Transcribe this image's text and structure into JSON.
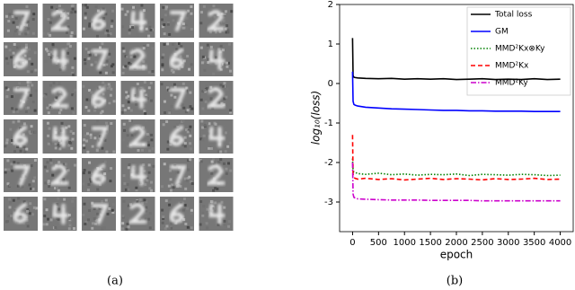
{
  "captions": {
    "a": "(a)",
    "b": "(b)"
  },
  "chart_data": {
    "type": "line",
    "xlabel": "epoch",
    "ylabel": "log₁₀(loss)",
    "x": [
      0,
      10,
      25,
      50,
      100,
      250,
      500,
      750,
      1000,
      1250,
      1500,
      1750,
      2000,
      2250,
      2500,
      2750,
      3000,
      3250,
      3500,
      3750,
      4000
    ],
    "xlim": [
      -250,
      4250
    ],
    "xticks": [
      0,
      500,
      1000,
      1500,
      2000,
      2500,
      3000,
      3500,
      4000
    ],
    "ylim": [
      -3.75,
      2
    ],
    "yticks": [
      -3,
      -2,
      -1,
      0,
      1,
      2
    ],
    "legend": "upper right",
    "series": [
      {
        "name": "Total loss",
        "color": "#000000",
        "dash": "solid",
        "values": [
          1.15,
          0.2,
          0.16,
          0.15,
          0.14,
          0.13,
          0.12,
          0.13,
          0.11,
          0.12,
          0.11,
          0.12,
          0.1,
          0.11,
          0.12,
          0.1,
          0.11,
          0.1,
          0.12,
          0.1,
          0.11
        ]
      },
      {
        "name": "GM",
        "color": "#0000ff",
        "dash": "solid",
        "values": [
          0.3,
          -0.45,
          -0.53,
          -0.55,
          -0.57,
          -0.6,
          -0.62,
          -0.64,
          -0.65,
          -0.66,
          -0.67,
          -0.68,
          -0.68,
          -0.69,
          -0.69,
          -0.7,
          -0.7,
          -0.7,
          -0.71,
          -0.71,
          -0.71
        ]
      },
      {
        "name": "MMD²Kx⊗Ky",
        "color": "#008000",
        "dash": "dotted",
        "values": [
          -1.9,
          -2.2,
          -2.24,
          -2.25,
          -2.28,
          -2.3,
          -2.27,
          -2.31,
          -2.29,
          -2.32,
          -2.3,
          -2.31,
          -2.29,
          -2.33,
          -2.3,
          -2.31,
          -2.32,
          -2.3,
          -2.31,
          -2.33,
          -2.32
        ]
      },
      {
        "name": "MMD²Kx",
        "color": "#ff0000",
        "dash": "dashed",
        "values": [
          -1.3,
          -2.3,
          -2.38,
          -2.4,
          -2.42,
          -2.4,
          -2.43,
          -2.41,
          -2.44,
          -2.42,
          -2.4,
          -2.43,
          -2.41,
          -2.42,
          -2.44,
          -2.41,
          -2.43,
          -2.42,
          -2.4,
          -2.43,
          -2.42
        ]
      },
      {
        "name": "MMD²Ky",
        "color": "#cc00cc",
        "dash": "dashdot",
        "values": [
          -2.0,
          -2.8,
          -2.88,
          -2.9,
          -2.92,
          -2.93,
          -2.94,
          -2.95,
          -2.95,
          -2.95,
          -2.96,
          -2.96,
          -2.96,
          -2.96,
          -2.97,
          -2.97,
          -2.97,
          -2.97,
          -2.97,
          -2.97,
          -2.97
        ]
      }
    ]
  }
}
